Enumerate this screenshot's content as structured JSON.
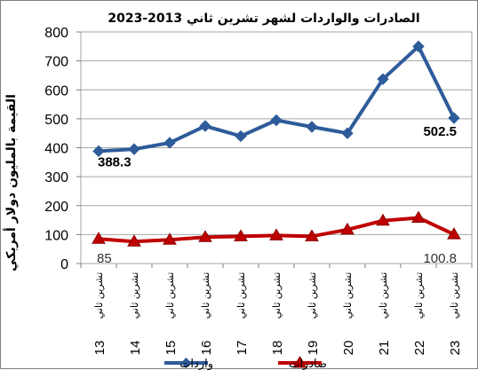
{
  "chart_data": {
    "type": "line",
    "title": "الصادرات والواردات لشهر تشرين ثاني 2013-2023",
    "ylabel": "القيمة بالمليون دولار أمريكي",
    "xlabel": "",
    "ylim": [
      0,
      800
    ],
    "yticks": [
      0,
      100,
      200,
      300,
      400,
      500,
      600,
      700,
      800
    ],
    "grid": true,
    "legend_position": "bottom",
    "categories": [
      {
        "text": "تشرين ثاني",
        "num": "13"
      },
      {
        "text": "تشرين ثاني",
        "num": "14"
      },
      {
        "text": "تشرين ثاني",
        "num": "15"
      },
      {
        "text": "تشرين ثاني",
        "num": "16"
      },
      {
        "text": "تشرين ثاني",
        "num": "17"
      },
      {
        "text": "تشرين ثاني",
        "num": "18"
      },
      {
        "text": "تشرين ثاني",
        "num": "19"
      },
      {
        "text": "تشرين ثاني",
        "num": "20"
      },
      {
        "text": "تشرين ثاني",
        "num": "21"
      },
      {
        "text": "تشرين ثاني",
        "num": "22"
      },
      {
        "text": "تشرين ثاني",
        "num": "23"
      }
    ],
    "series": [
      {
        "name": "واردات",
        "color": "#2e5b9a",
        "marker": "diamond",
        "values": [
          388.3,
          395,
          417,
          475,
          440,
          495,
          472,
          450,
          637,
          750,
          502.5
        ],
        "labels": [
          {
            "index": 0,
            "text": "388.3"
          },
          {
            "index": 10,
            "text": "502.5"
          }
        ]
      },
      {
        "name": "صادرات",
        "color": "#c00000",
        "marker": "triangle",
        "values": [
          85,
          76,
          82,
          91,
          94,
          97,
          94,
          117,
          148,
          158,
          100.8
        ],
        "labels": [
          {
            "index": 0,
            "text": "85"
          },
          {
            "index": 10,
            "text": "100.8"
          }
        ]
      }
    ]
  }
}
